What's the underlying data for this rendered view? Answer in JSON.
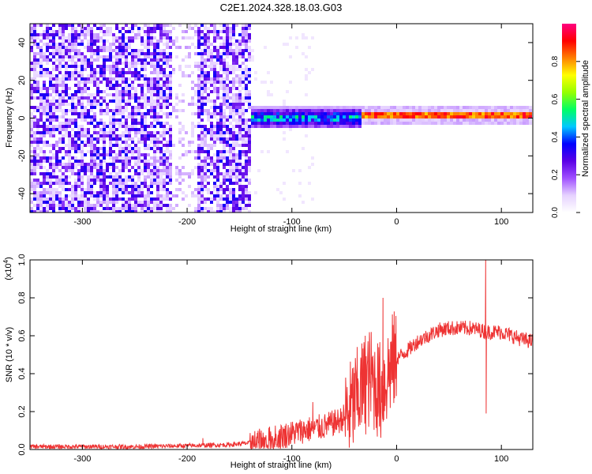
{
  "figure": {
    "title": "C2E1.2024.328.18.03.G03"
  },
  "chart_data": [
    {
      "type": "heatmap",
      "xlabel": "Height of straight line (km)",
      "ylabel": "Frequency (Hz)",
      "xlim": [
        -350,
        130
      ],
      "ylim": [
        -50,
        50
      ],
      "xticks": [
        -300,
        -200,
        -100,
        0,
        100
      ],
      "yticks": [
        -40,
        -20,
        0,
        20,
        40
      ],
      "colorbar": {
        "label": "Normalized spectral amplitude",
        "range": [
          0.0,
          1.0
        ],
        "ticks": [
          "0.0",
          "0.2",
          "0.4",
          "0.6",
          "0.8"
        ],
        "colormap": [
          "#ffffff",
          "#e6d2ff",
          "#a050ff",
          "#5a00e6",
          "#0000ff",
          "#00c8ff",
          "#00ff64",
          "#96ff00",
          "#ffff00",
          "#ff8000",
          "#ff0000",
          "#ff0080"
        ]
      },
      "features": [
        {
          "x_start": -350,
          "x_end": -140,
          "description": "broadband noise",
          "amplitude": 0.2
        },
        {
          "x_start": -140,
          "x_end": -35,
          "freq_center": 0,
          "freq_halfwidth": 6,
          "amplitude": 0.45
        },
        {
          "x_start": -35,
          "x_end": 130,
          "freq_center": 1,
          "freq_halfwidth": 1.5,
          "amplitude": 0.95
        },
        {
          "x_start": -147,
          "x_end": -138,
          "freq_start": -42,
          "freq_end": -5,
          "description": "diagonal streak",
          "amplitude": 0.25
        }
      ]
    },
    {
      "type": "line",
      "xlabel": "Height of straight line (km)",
      "ylabel": "SNR (10 * v/v)",
      "y_scale_label": "(x10",
      "y_scale_exp": "4",
      "y_scale_close": ")",
      "xlim": [
        -350,
        130
      ],
      "ylim": [
        0.0,
        1.0
      ],
      "xticks": [
        -300,
        -200,
        -100,
        0,
        100
      ],
      "yticks": [
        "0.0",
        "0.2",
        "0.4",
        "0.6",
        "0.8",
        "1.0"
      ],
      "series_color": "#ee3333",
      "x": [
        -350,
        -300,
        -250,
        -200,
        -160,
        -130,
        -110,
        -90,
        -70,
        -55,
        -45,
        -35,
        -25,
        -15,
        -5,
        0,
        10,
        20,
        30,
        40,
        50,
        60,
        70,
        80,
        85,
        90,
        100,
        110,
        120,
        130
      ],
      "y": [
        0.015,
        0.015,
        0.015,
        0.02,
        0.025,
        0.04,
        0.07,
        0.1,
        0.12,
        0.15,
        0.2,
        0.3,
        0.38,
        0.3,
        0.45,
        0.48,
        0.52,
        0.57,
        0.6,
        0.63,
        0.64,
        0.64,
        0.64,
        0.63,
        0.62,
        0.62,
        0.62,
        0.6,
        0.58,
        0.57
      ],
      "spikes": [
        {
          "x": -185,
          "y": 0.06
        },
        {
          "x": -80,
          "y": 0.25
        },
        {
          "x": -30,
          "y": 0.6
        },
        {
          "x": -13,
          "y": 0.8
        },
        {
          "x": 85,
          "y": 1.0
        },
        {
          "x": 85.5,
          "y": 0.19
        }
      ]
    }
  ]
}
